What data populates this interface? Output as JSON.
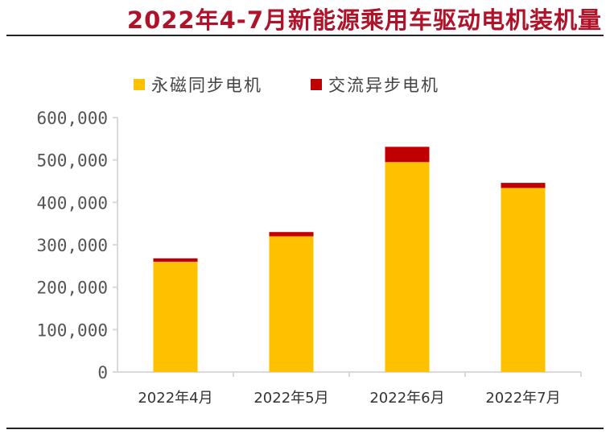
{
  "chart_data": {
    "type": "bar",
    "stacked": true,
    "title": "2022年4-7月新能源乘用车驱动电机装机量",
    "categories": [
      "2022年4月",
      "2022年5月",
      "2022年6月",
      "2022年7月"
    ],
    "series": [
      {
        "name": "永磁同步电机",
        "color": "#ffc000",
        "values": [
          260000,
          320000,
          495000,
          434000
        ]
      },
      {
        "name": "交流异步电机",
        "color": "#c00000",
        "values": [
          8000,
          10000,
          36000,
          12000
        ]
      }
    ],
    "ylim": [
      0,
      600000
    ],
    "yticks": [
      0,
      100000,
      200000,
      300000,
      400000,
      500000,
      600000
    ],
    "ytick_labels": [
      "0",
      "100,000",
      "200,000",
      "300,000",
      "400,000",
      "500,000",
      "600,000"
    ],
    "grid": false,
    "legend": "top"
  }
}
